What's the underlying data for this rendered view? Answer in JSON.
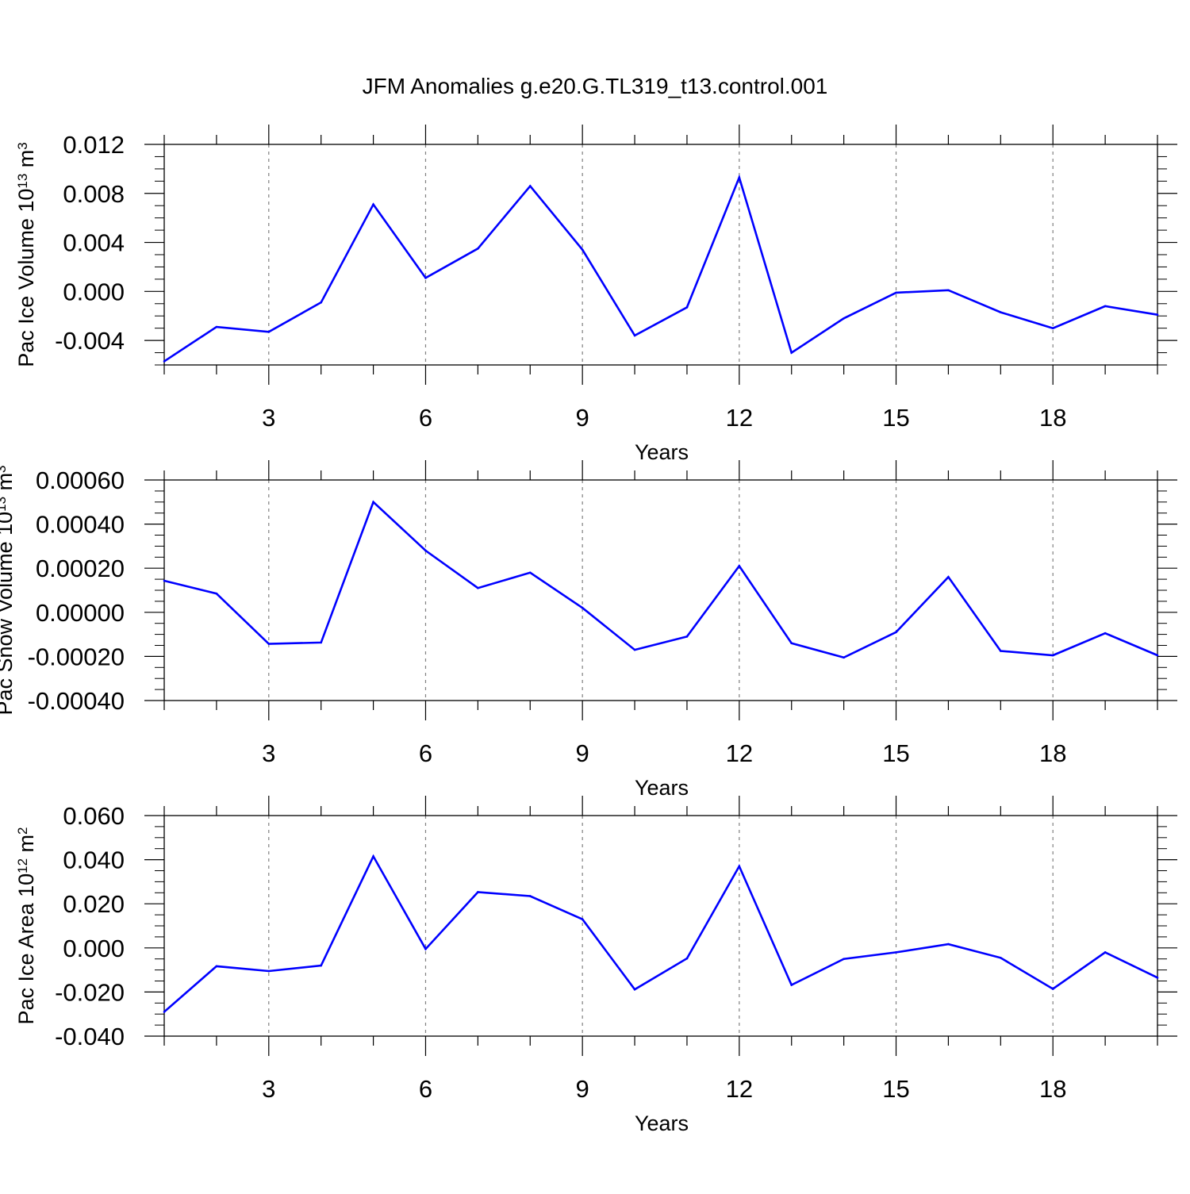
{
  "title": "JFM Anomalies g.e20.G.TL319_t13.control.001",
  "colors": {
    "series": "#0000ff",
    "axis": "#000000",
    "grid": "#808080"
  },
  "chart_data": [
    {
      "type": "line",
      "title": "JFM Anomalies g.e20.G.TL319_t13.control.001",
      "xlabel": "Years",
      "ylabel": "Pac Ice Volume 10",
      "ylabel_exp": "13",
      "ylabel_unit": " m",
      "ylabel_unit_exp": "3",
      "xlim": [
        1,
        20
      ],
      "ylim": [
        -0.006,
        0.012
      ],
      "xticks": [
        3,
        6,
        9,
        12,
        15,
        18
      ],
      "yticks": [
        {
          "value": -0.004,
          "label": "-0.004"
        },
        {
          "value": 0.0,
          "label": "0.000"
        },
        {
          "value": 0.004,
          "label": "0.004"
        },
        {
          "value": 0.008,
          "label": "0.008"
        },
        {
          "value": 0.012,
          "label": "0.012"
        }
      ],
      "grid": "x-dashed",
      "x": [
        1,
        2,
        3,
        4,
        5,
        6,
        7,
        8,
        9,
        10,
        11,
        12,
        13,
        14,
        15,
        16,
        17,
        18,
        19,
        20
      ],
      "values": [
        -0.0057,
        -0.0029,
        -0.0033,
        -0.0009,
        0.0071,
        0.0011,
        0.0035,
        0.0086,
        0.0034,
        -0.0036,
        -0.0013,
        0.0093,
        -0.005,
        -0.0022,
        -0.0001,
        0.0001,
        -0.0017,
        -0.003,
        -0.0012,
        -0.0019
      ]
    },
    {
      "type": "line",
      "xlabel": "Years",
      "ylabel": "Pac Snow Volume 10",
      "ylabel_exp": "13",
      "ylabel_unit": " m",
      "ylabel_unit_exp": "3",
      "xlim": [
        1,
        20
      ],
      "ylim": [
        -0.0004,
        0.0006
      ],
      "xticks": [
        3,
        6,
        9,
        12,
        15,
        18
      ],
      "yticks": [
        {
          "value": -0.0004,
          "label": "-0.00040"
        },
        {
          "value": -0.0002,
          "label": "-0.00020"
        },
        {
          "value": 0.0,
          "label": "0.00000"
        },
        {
          "value": 0.0002,
          "label": "0.00020"
        },
        {
          "value": 0.0004,
          "label": "0.00040"
        },
        {
          "value": 0.0006,
          "label": "0.00060"
        }
      ],
      "grid": "x-dashed",
      "x": [
        1,
        2,
        3,
        4,
        5,
        6,
        7,
        8,
        9,
        10,
        11,
        12,
        13,
        14,
        15,
        16,
        17,
        18,
        19,
        20
      ],
      "values": [
        0.000143,
        8.5e-05,
        -0.000143,
        -0.000137,
        0.0005,
        0.00028,
        0.00011,
        0.00018,
        2e-05,
        -0.00017,
        -0.00011,
        0.00021,
        -0.00014,
        -0.000205,
        -9e-05,
        0.00016,
        -0.000175,
        -0.000195,
        -9.5e-05,
        -0.000195
      ]
    },
    {
      "type": "line",
      "xlabel": "Years",
      "ylabel": "Pac Ice Area 10",
      "ylabel_exp": "12",
      "ylabel_unit": " m",
      "ylabel_unit_exp": "2",
      "xlim": [
        1,
        20
      ],
      "ylim": [
        -0.04,
        0.06
      ],
      "xticks": [
        3,
        6,
        9,
        12,
        15,
        18
      ],
      "yticks": [
        {
          "value": -0.04,
          "label": "-0.040"
        },
        {
          "value": -0.02,
          "label": "-0.020"
        },
        {
          "value": 0.0,
          "label": "0.000"
        },
        {
          "value": 0.02,
          "label": "0.020"
        },
        {
          "value": 0.04,
          "label": "0.040"
        },
        {
          "value": 0.06,
          "label": "0.060"
        }
      ],
      "grid": "x-dashed",
      "x": [
        1,
        2,
        3,
        4,
        5,
        6,
        7,
        8,
        9,
        10,
        11,
        12,
        13,
        14,
        15,
        16,
        17,
        18,
        19,
        20
      ],
      "values": [
        -0.029,
        -0.0083,
        -0.0105,
        -0.008,
        0.0415,
        -0.0005,
        0.0253,
        0.0235,
        0.013,
        -0.0188,
        -0.0048,
        0.037,
        -0.0168,
        -0.005,
        -0.002,
        0.0017,
        -0.0045,
        -0.0186,
        -0.002,
        -0.0135
      ]
    }
  ]
}
